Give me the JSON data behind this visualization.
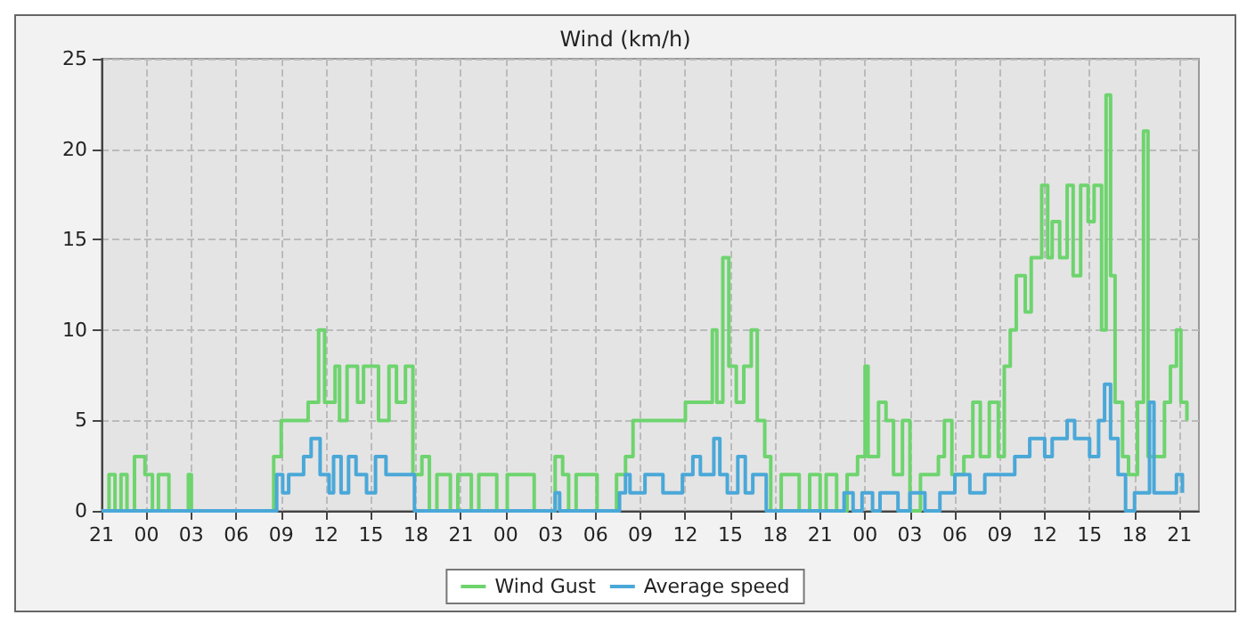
{
  "chart_data": {
    "type": "step",
    "title": "Wind (km/h)",
    "xlim": [
      "--01-01T21:00",
      "--01-04T22:18"
    ],
    "ylim": [
      0,
      25
    ],
    "xticks": [
      {
        "value": "--01-01T21:00",
        "label": "21"
      },
      {
        "value": "--01-02T00:00",
        "label": "00"
      },
      {
        "value": "--01-02T03:00",
        "label": "03"
      },
      {
        "value": "--01-02T06:00",
        "label": "06"
      },
      {
        "value": "--01-02T09:00",
        "label": "09"
      },
      {
        "value": "--01-02T12:00",
        "label": "12"
      },
      {
        "value": "--01-02T15:00",
        "label": "15"
      },
      {
        "value": "--01-02T18:00",
        "label": "18"
      },
      {
        "value": "--01-02T21:00",
        "label": "21"
      },
      {
        "value": "--01-03T00:00",
        "label": "00"
      },
      {
        "value": "--01-03T03:00",
        "label": "03"
      },
      {
        "value": "--01-03T06:00",
        "label": "06"
      },
      {
        "value": "--01-03T09:00",
        "label": "09"
      },
      {
        "value": "--01-03T12:00",
        "label": "12"
      },
      {
        "value": "--01-03T15:00",
        "label": "15"
      },
      {
        "value": "--01-03T18:00",
        "label": "18"
      },
      {
        "value": "--01-03T21:00",
        "label": "21"
      },
      {
        "value": "--01-04T00:00",
        "label": "00"
      },
      {
        "value": "--01-04T03:00",
        "label": "03"
      },
      {
        "value": "--01-04T06:00",
        "label": "06"
      },
      {
        "value": "--01-04T09:00",
        "label": "09"
      },
      {
        "value": "--01-04T12:00",
        "label": "12"
      },
      {
        "value": "--01-04T15:00",
        "label": "15"
      },
      {
        "value": "--01-04T18:00",
        "label": "18"
      },
      {
        "value": "--01-04T21:00",
        "label": "21"
      }
    ],
    "yticks": [
      0,
      5,
      10,
      15,
      20,
      25
    ],
    "grid": true,
    "legend": "bottom",
    "marker": "none",
    "line_style": "solid",
    "series": [
      {
        "name": "Wind Gust",
        "color": "#6ed46e",
        "x": [
          "--01-01T21:00",
          "--01-01T21:30",
          "--01-01T21:54",
          "--01-01T22:18",
          "--01-01T22:42",
          "--01-01T23:12",
          "--01-01T23:54",
          "--01-02T00:24",
          "--01-02T00:48",
          "--01-02T01:30",
          "--01-02T02:48",
          "--01-02T03:00",
          "--01-02T08:30",
          "--01-02T09:00",
          "--01-02T10:12",
          "--01-02T10:48",
          "--01-02T11:30",
          "--01-02T11:54",
          "--01-02T12:36",
          "--01-02T12:54",
          "--01-02T13:24",
          "--01-02T14:06",
          "--01-02T14:30",
          "--01-02T15:30",
          "--01-02T16:12",
          "--01-02T16:42",
          "--01-02T17:18",
          "--01-02T17:48",
          "--01-02T18:24",
          "--01-02T18:54",
          "--01-02T19:24",
          "--01-02T20:18",
          "--01-02T20:48",
          "--01-02T21:42",
          "--01-02T22:12",
          "--01-02T23:24",
          "--01-03T00:06",
          "--01-03T01:54",
          "--01-03T03:18",
          "--01-03T03:48",
          "--01-03T04:12",
          "--01-03T04:42",
          "--01-03T06:06",
          "--01-03T07:24",
          "--01-03T08:00",
          "--01-03T08:30",
          "--01-03T11:24",
          "--01-03T12:00",
          "--01-03T13:18",
          "--01-03T13:48",
          "--01-03T14:06",
          "--01-03T14:30",
          "--01-03T14:54",
          "--01-03T15:24",
          "--01-03T15:54",
          "--01-03T16:24",
          "--01-03T16:48",
          "--01-03T17:18",
          "--01-03T17:42",
          "--01-03T18:24",
          "--01-03T19:36",
          "--01-03T20:18",
          "--01-03T21:00",
          "--01-03T21:24",
          "--01-03T22:06",
          "--01-03T22:48",
          "--01-03T23:30",
          "--01-04T00:00",
          "--01-04T00:12",
          "--01-04T00:54",
          "--01-04T01:24",
          "--01-04T01:54",
          "--01-04T02:30",
          "--01-04T03:00",
          "--01-04T03:42",
          "--01-04T04:54",
          "--01-04T05:18",
          "--01-04T05:48",
          "--01-04T06:36",
          "--01-04T07:12",
          "--01-04T07:42",
          "--01-04T08:18",
          "--01-04T08:54",
          "--01-04T09:18",
          "--01-04T09:42",
          "--01-04T10:06",
          "--01-04T10:42",
          "--01-04T11:06",
          "--01-04T11:48",
          "--01-04T12:12",
          "--01-04T12:30",
          "--01-04T13:00",
          "--01-04T13:30",
          "--01-04T13:54",
          "--01-04T14:24",
          "--01-04T14:54",
          "--01-04T15:18",
          "--01-04T15:48",
          "--01-04T16:06",
          "--01-04T16:24",
          "--01-04T16:42",
          "--01-04T17:12",
          "--01-04T17:36",
          "--01-04T18:12",
          "--01-04T18:36",
          "--01-04T18:54",
          "--01-04T20:00",
          "--01-04T20:24",
          "--01-04T20:48",
          "--01-04T21:06",
          "--01-04T21:30"
        ],
        "values": [
          0,
          2,
          0,
          2,
          0,
          3,
          2,
          0,
          2,
          0,
          2,
          0,
          3,
          5,
          5,
          6,
          10,
          6,
          8,
          5,
          8,
          6,
          8,
          5,
          8,
          6,
          8,
          2,
          3,
          0,
          2,
          0,
          2,
          0,
          2,
          0,
          2,
          0,
          3,
          2,
          0,
          2,
          0,
          2,
          3,
          5,
          5,
          6,
          6,
          10,
          6,
          14,
          8,
          6,
          8,
          10,
          5,
          3,
          0,
          2,
          0,
          2,
          0,
          2,
          0,
          2,
          3,
          8,
          3,
          6,
          5,
          2,
          5,
          0,
          2,
          3,
          5,
          2,
          3,
          6,
          3,
          6,
          3,
          8,
          10,
          13,
          11,
          14,
          18,
          14,
          16,
          14,
          18,
          13,
          18,
          16,
          18,
          10,
          23,
          13,
          6,
          3,
          2,
          6,
          21,
          3,
          6,
          8,
          10,
          6,
          5
        ]
      },
      {
        "name": "Average speed",
        "color": "#4aa8d8",
        "x": [
          "--01-01T21:00",
          "--01-02T08:42",
          "--01-02T09:06",
          "--01-02T09:30",
          "--01-02T10:30",
          "--01-02T11:00",
          "--01-02T11:36",
          "--01-02T12:12",
          "--01-02T12:30",
          "--01-02T13:00",
          "--01-02T13:30",
          "--01-02T14:00",
          "--01-02T14:42",
          "--01-02T15:18",
          "--01-02T16:00",
          "--01-02T17:54",
          "--01-03T03:18",
          "--01-03T03:36",
          "--01-03T07:36",
          "--01-03T08:00",
          "--01-03T08:18",
          "--01-03T09:18",
          "--01-03T10:30",
          "--01-03T11:48",
          "--01-03T12:30",
          "--01-03T13:00",
          "--01-03T13:54",
          "--01-03T14:18",
          "--01-03T14:48",
          "--01-03T15:30",
          "--01-03T16:00",
          "--01-03T16:30",
          "--01-03T17:24",
          "--01-03T22:36",
          "--01-03T23:12",
          "--01-03T23:48",
          "--01-04T00:30",
          "--01-04T01:00",
          "--01-04T02:12",
          "--01-04T03:00",
          "--01-04T04:00",
          "--01-04T05:00",
          "--01-04T06:00",
          "--01-04T07:00",
          "--01-04T08:00",
          "--01-04T10:00",
          "--01-04T11:00",
          "--01-04T12:00",
          "--01-04T12:30",
          "--01-04T13:30",
          "--01-04T14:00",
          "--01-04T15:00",
          "--01-04T15:36",
          "--01-04T16:00",
          "--01-04T16:24",
          "--01-04T16:54",
          "--01-04T17:24",
          "--01-04T18:00",
          "--01-04T19:00",
          "--01-04T19:18",
          "--01-04T20:48",
          "--01-04T21:12"
        ],
        "values": [
          0,
          2,
          1,
          2,
          3,
          4,
          2,
          1,
          3,
          1,
          3,
          2,
          1,
          3,
          2,
          0,
          1,
          0,
          1,
          2,
          1,
          2,
          1,
          2,
          3,
          2,
          4,
          2,
          1,
          3,
          1,
          2,
          0,
          1,
          0,
          1,
          0,
          1,
          0,
          1,
          0,
          1,
          2,
          1,
          2,
          3,
          4,
          3,
          4,
          5,
          4,
          3,
          5,
          7,
          4,
          2,
          0,
          1,
          6,
          1,
          2,
          1
        ]
      }
    ]
  }
}
